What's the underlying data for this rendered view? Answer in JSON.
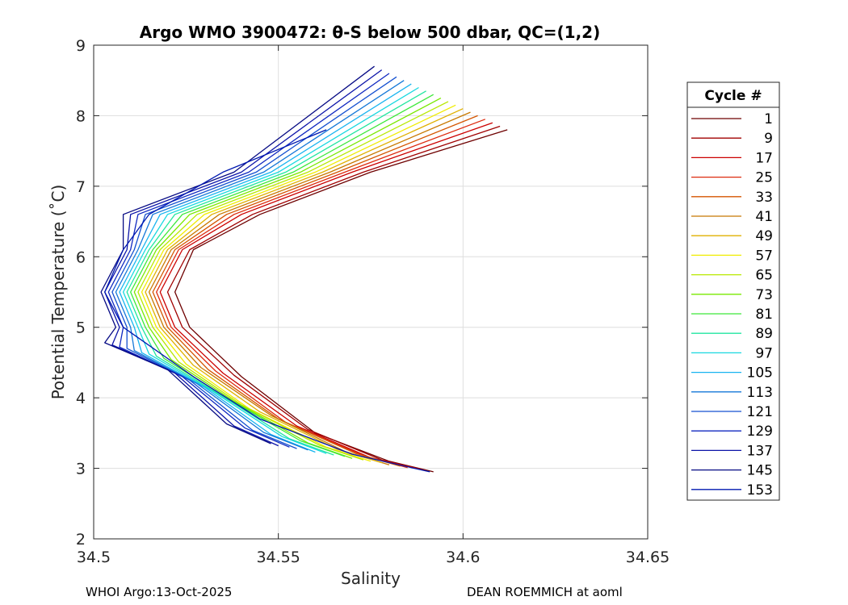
{
  "chart_data": {
    "type": "line",
    "title": "Argo WMO 3900472: θ-S below 500 dbar,  QC=(1,2)",
    "xlabel": "Salinity",
    "ylabel": "Potential Temperature (˚C)",
    "xlim": [
      34.5,
      34.65
    ],
    "ylim": [
      2,
      9
    ],
    "xticks": [
      34.5,
      34.55,
      34.6,
      34.65
    ],
    "xtick_labels": [
      "34.5",
      "34.55",
      "34.6",
      "34.65"
    ],
    "yticks": [
      2,
      3,
      4,
      5,
      6,
      7,
      8,
      9
    ],
    "ytick_labels": [
      "2",
      "3",
      "4",
      "5",
      "6",
      "7",
      "8",
      "9"
    ],
    "grid": true,
    "legend": {
      "title": "Cycle #",
      "placement": "right-outside",
      "entries": [
        "1",
        "9",
        "17",
        "25",
        "33",
        "41",
        "49",
        "57",
        "65",
        "73",
        "81",
        "89",
        "97",
        "105",
        "113",
        "121",
        "129",
        "137",
        "145",
        "153"
      ]
    },
    "colors": [
      "#6e0000",
      "#a00000",
      "#cc0000",
      "#dd2a0e",
      "#d45500",
      "#c87800",
      "#e0b000",
      "#f0ec00",
      "#b8e800",
      "#7ae800",
      "#3ce83a",
      "#20e6a0",
      "#18d8e0",
      "#18b4f0",
      "#1478d8",
      "#1450d0",
      "#1028c0",
      "#0c14a8",
      "#060a84",
      "#0018b0"
    ],
    "series": [
      {
        "name": "1",
        "x": [
          34.592,
          34.58,
          34.56,
          34.54,
          34.526,
          34.522,
          34.527,
          34.545,
          34.575,
          34.612
        ],
        "y": [
          2.95,
          3.1,
          3.5,
          4.3,
          5.0,
          5.5,
          6.1,
          6.6,
          7.2,
          7.8
        ]
      },
      {
        "name": "9",
        "x": [
          34.59,
          34.578,
          34.558,
          34.538,
          34.524,
          34.52,
          34.526,
          34.543,
          34.573,
          34.61
        ],
        "y": [
          2.97,
          3.12,
          3.55,
          4.32,
          5.0,
          5.5,
          6.1,
          6.6,
          7.2,
          7.85
        ]
      },
      {
        "name": "17",
        "x": [
          34.588,
          34.575,
          34.555,
          34.535,
          34.522,
          34.518,
          34.524,
          34.54,
          34.57,
          34.608
        ],
        "y": [
          2.99,
          3.15,
          3.6,
          4.35,
          5.0,
          5.5,
          6.1,
          6.6,
          7.2,
          7.9
        ]
      },
      {
        "name": "25",
        "x": [
          34.585,
          34.573,
          34.552,
          34.533,
          34.521,
          34.517,
          34.523,
          34.538,
          34.568,
          34.606
        ],
        "y": [
          3.01,
          3.18,
          3.65,
          4.38,
          5.0,
          5.5,
          6.1,
          6.6,
          7.2,
          7.95
        ]
      },
      {
        "name": "33",
        "x": [
          34.583,
          34.571,
          34.55,
          34.531,
          34.52,
          34.516,
          34.522,
          34.536,
          34.566,
          34.604
        ],
        "y": [
          3.03,
          3.21,
          3.7,
          4.4,
          5.0,
          5.5,
          6.1,
          6.6,
          7.2,
          8.0
        ]
      },
      {
        "name": "41",
        "x": [
          34.58,
          34.568,
          34.548,
          34.529,
          34.519,
          34.515,
          34.521,
          34.534,
          34.564,
          34.602
        ],
        "y": [
          3.05,
          3.24,
          3.75,
          4.43,
          5.0,
          5.5,
          6.1,
          6.6,
          7.2,
          8.05
        ]
      },
      {
        "name": "49",
        "x": [
          34.578,
          34.566,
          34.545,
          34.527,
          34.518,
          34.514,
          34.52,
          34.532,
          34.562,
          34.6
        ],
        "y": [
          3.08,
          3.27,
          3.8,
          4.46,
          5.0,
          5.5,
          6.1,
          6.6,
          7.2,
          8.1
        ]
      },
      {
        "name": "57",
        "x": [
          34.575,
          34.563,
          34.542,
          34.525,
          34.517,
          34.513,
          34.519,
          34.53,
          34.56,
          34.598
        ],
        "y": [
          3.1,
          3.3,
          3.85,
          4.48,
          5.0,
          5.5,
          6.1,
          6.6,
          7.2,
          8.15
        ]
      },
      {
        "name": "65",
        "x": [
          34.573,
          34.561,
          34.54,
          34.523,
          34.516,
          34.512,
          34.518,
          34.528,
          34.558,
          34.596
        ],
        "y": [
          3.12,
          3.33,
          3.9,
          4.51,
          5.0,
          5.5,
          6.1,
          6.6,
          7.2,
          8.2
        ]
      },
      {
        "name": "73",
        "x": [
          34.57,
          34.558,
          34.538,
          34.521,
          34.515,
          34.511,
          34.517,
          34.526,
          34.556,
          34.594
        ],
        "y": [
          3.14,
          3.36,
          3.95,
          4.54,
          5.0,
          5.5,
          6.1,
          6.6,
          7.2,
          8.25
        ]
      },
      {
        "name": "81",
        "x": [
          34.568,
          34.556,
          34.536,
          34.519,
          34.514,
          34.51,
          34.516,
          34.524,
          34.554,
          34.592
        ],
        "y": [
          3.17,
          3.39,
          4.0,
          4.56,
          5.0,
          5.5,
          6.1,
          6.6,
          7.2,
          8.3
        ]
      },
      {
        "name": "89",
        "x": [
          34.565,
          34.553,
          34.534,
          34.517,
          34.513,
          34.509,
          34.515,
          34.522,
          34.552,
          34.59
        ],
        "y": [
          3.19,
          3.42,
          4.05,
          4.59,
          5.0,
          5.5,
          6.1,
          6.6,
          7.2,
          8.35
        ]
      },
      {
        "name": "97",
        "x": [
          34.563,
          34.551,
          34.532,
          34.515,
          34.512,
          34.508,
          34.514,
          34.52,
          34.55,
          34.588
        ],
        "y": [
          3.21,
          3.45,
          4.1,
          4.62,
          5.0,
          5.5,
          6.1,
          6.6,
          7.2,
          8.4
        ]
      },
      {
        "name": "105",
        "x": [
          34.56,
          34.548,
          34.53,
          34.513,
          34.511,
          34.507,
          34.513,
          34.518,
          34.548,
          34.586
        ],
        "y": [
          3.23,
          3.48,
          4.15,
          4.64,
          5.0,
          5.5,
          6.1,
          6.6,
          7.2,
          8.45
        ]
      },
      {
        "name": "113",
        "x": [
          34.558,
          34.546,
          34.528,
          34.511,
          34.51,
          34.506,
          34.512,
          34.516,
          34.546,
          34.584
        ],
        "y": [
          3.26,
          3.51,
          4.2,
          4.67,
          5.0,
          5.5,
          6.1,
          6.6,
          7.2,
          8.5
        ]
      },
      {
        "name": "121",
        "x": [
          34.555,
          34.543,
          34.526,
          34.509,
          34.509,
          34.505,
          34.511,
          34.514,
          34.544,
          34.582
        ],
        "y": [
          3.28,
          3.54,
          4.25,
          4.7,
          5.0,
          5.5,
          6.1,
          6.6,
          7.2,
          8.55
        ]
      },
      {
        "name": "129",
        "x": [
          34.553,
          34.541,
          34.524,
          34.507,
          34.508,
          34.504,
          34.51,
          34.512,
          34.542,
          34.58
        ],
        "y": [
          3.3,
          3.57,
          4.3,
          4.72,
          5.0,
          5.5,
          6.1,
          6.6,
          7.2,
          8.6
        ]
      },
      {
        "name": "137",
        "x": [
          34.55,
          34.538,
          34.522,
          34.505,
          34.507,
          34.503,
          34.509,
          34.51,
          34.54,
          34.578
        ],
        "y": [
          3.32,
          3.6,
          4.35,
          4.75,
          5.0,
          5.5,
          6.1,
          6.6,
          7.2,
          8.65
        ]
      },
      {
        "name": "145",
        "x": [
          34.548,
          34.536,
          34.52,
          34.503,
          34.506,
          34.502,
          34.508,
          34.508,
          34.538,
          34.576
        ],
        "y": [
          3.35,
          3.63,
          4.4,
          4.78,
          5.0,
          5.5,
          6.1,
          6.6,
          7.2,
          8.7
        ]
      },
      {
        "name": "153",
        "x": [
          34.591,
          34.57,
          34.545,
          34.527,
          34.508,
          34.503,
          34.508,
          34.515,
          34.535,
          34.563
        ],
        "y": [
          2.95,
          3.2,
          3.7,
          4.3,
          5.0,
          5.5,
          6.1,
          6.6,
          7.2,
          7.8
        ]
      }
    ]
  },
  "footer": {
    "left": "WHOI Argo:13-Oct-2025",
    "right": "DEAN ROEMMICH at aoml"
  }
}
